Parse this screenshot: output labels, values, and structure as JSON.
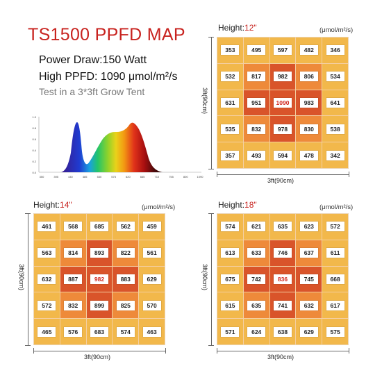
{
  "header": {
    "title": "TS1500 PPFD MAP",
    "power_draw": "Power Draw:150 Watt",
    "high_ppfd": "High PPFD:  1090 μmol/m²/s",
    "test_note": "Test in a 3*3ft Grow Tent"
  },
  "spectrum": {
    "y_ticks": [
      "1.0",
      "0.8",
      "0.6",
      "0.4",
      "0.2",
      "0.0"
    ],
    "x_ticks": [
      "350",
      "395",
      "440",
      "485",
      "530",
      "575",
      "620",
      "665",
      "710",
      "755",
      "800",
      "1090"
    ]
  },
  "maps": [
    {
      "height_prefix": "Height:",
      "height_value": "12\"",
      "unit": "(μmol/m²/s)",
      "width_label": "3ft(90cm)",
      "depth_label": "3ft(90cm)",
      "peak": 1090,
      "values": [
        [
          353,
          495,
          597,
          482,
          346
        ],
        [
          532,
          817,
          982,
          806,
          534
        ],
        [
          631,
          951,
          1090,
          983,
          641
        ],
        [
          535,
          832,
          978,
          830,
          538
        ],
        [
          357,
          493,
          594,
          478,
          342
        ]
      ]
    },
    {
      "height_prefix": "Height:",
      "height_value": "14\"",
      "unit": "(μmol/m²/s)",
      "width_label": "3ft(90cm)",
      "depth_label": "3ft(90cm)",
      "peak": 982,
      "values": [
        [
          461,
          568,
          685,
          562,
          459
        ],
        [
          563,
          814,
          893,
          822,
          561
        ],
        [
          632,
          887,
          982,
          883,
          629
        ],
        [
          572,
          832,
          899,
          825,
          570
        ],
        [
          465,
          576,
          683,
          574,
          463
        ]
      ]
    },
    {
      "height_prefix": "Height:",
      "height_value": "18\"",
      "unit": "(μmol/m²/s)",
      "width_label": "3ft(90cm)",
      "depth_label": "3ft(90cm)",
      "peak": 836,
      "values": [
        [
          574,
          621,
          635,
          623,
          572
        ],
        [
          613,
          633,
          746,
          637,
          611
        ],
        [
          675,
          742,
          836,
          745,
          668
        ],
        [
          615,
          635,
          741,
          632,
          617
        ],
        [
          571,
          624,
          638,
          629,
          575
        ]
      ]
    }
  ],
  "colors": {
    "title_red": "#c8231f",
    "heat_low": "#f2b84b",
    "heat_mid": "#ee8a3a",
    "heat_high": "#d9542a"
  }
}
